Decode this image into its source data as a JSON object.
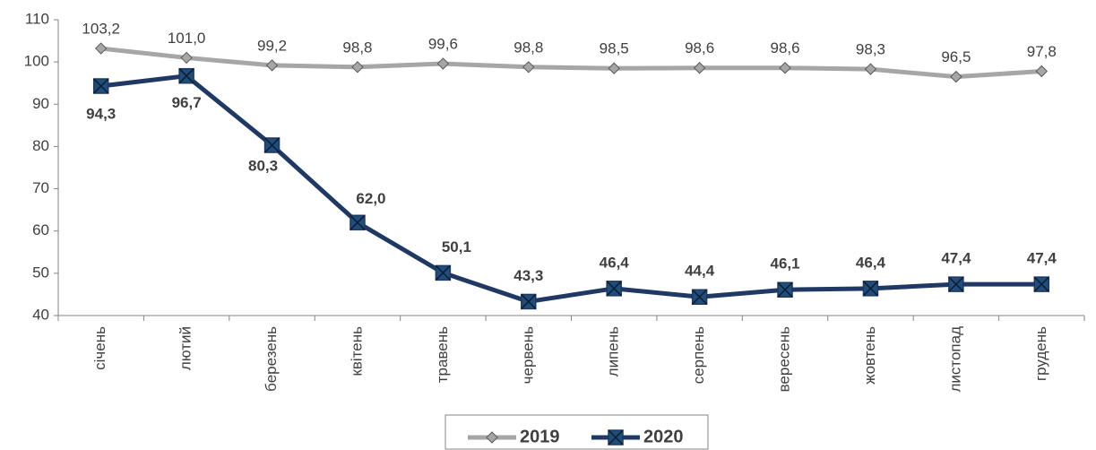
{
  "chart_data": {
    "type": "line",
    "categories": [
      "січень",
      "лютий",
      "березень",
      "квітень",
      "травень",
      "червень",
      "липень",
      "серпень",
      "вересень",
      "жовтень",
      "листопад",
      "грудень"
    ],
    "series": [
      {
        "name": "2019",
        "color": "#a6a6a6",
        "values": [
          103.2,
          101.0,
          99.2,
          98.8,
          99.6,
          98.8,
          98.5,
          98.6,
          98.6,
          98.3,
          96.5,
          97.8
        ],
        "value_labels": [
          "103,2",
          "101,0",
          "99,2",
          "98,8",
          "99,6",
          "98,8",
          "98,5",
          "98,6",
          "98,6",
          "98,3",
          "96,5",
          "97,8"
        ]
      },
      {
        "name": "2020",
        "color": "#1f3864",
        "values": [
          94.3,
          96.7,
          80.3,
          62.0,
          50.1,
          43.3,
          46.4,
          44.4,
          46.1,
          46.4,
          47.4,
          47.4
        ],
        "value_labels": [
          "94,3",
          "96,7",
          "80,3",
          "62,0",
          "50,1",
          "43,3",
          "46,4",
          "44,4",
          "46,1",
          "46,4",
          "47,4",
          "47,4"
        ]
      }
    ],
    "ylim": [
      40,
      110
    ],
    "yticks": [
      40,
      50,
      60,
      70,
      80,
      90,
      100,
      110
    ],
    "legend": "bottom"
  }
}
